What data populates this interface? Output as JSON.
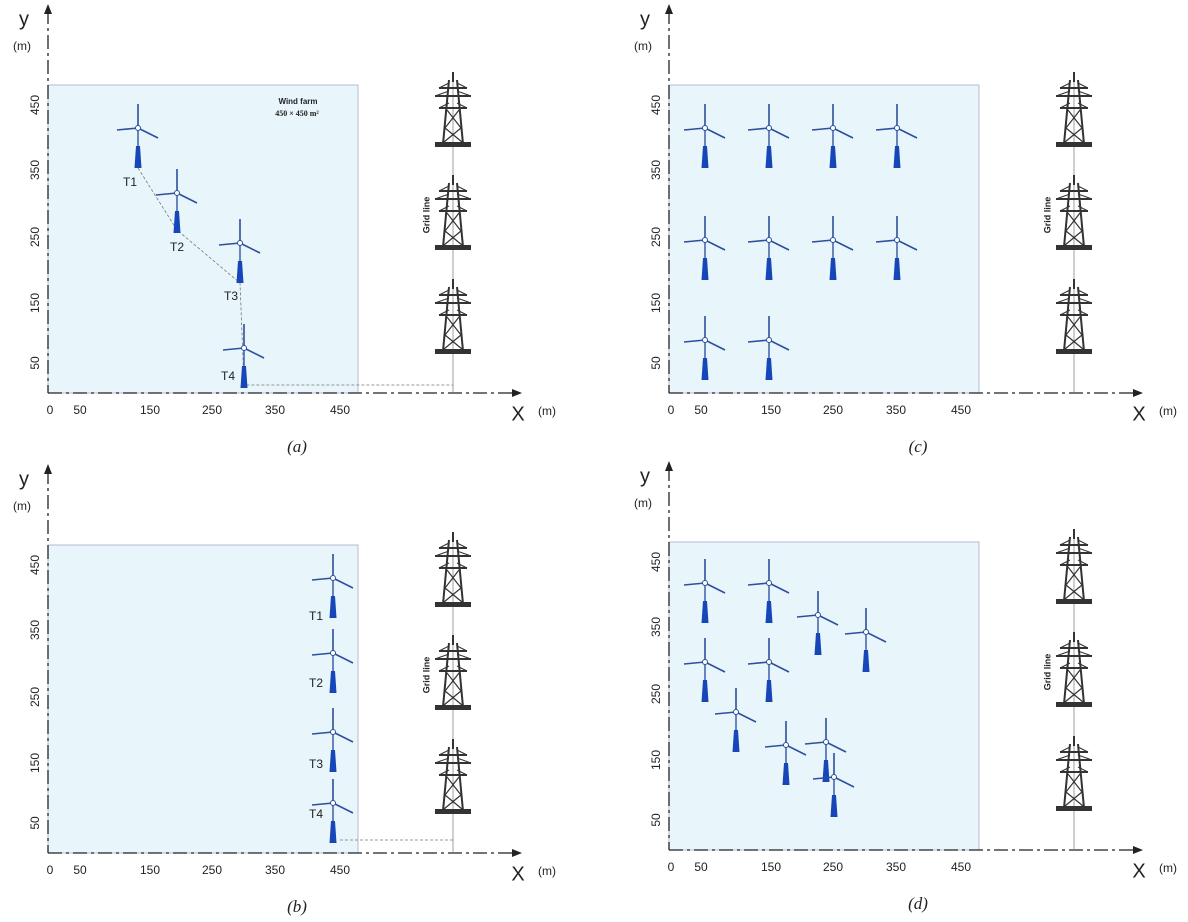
{
  "panels": [
    {
      "caption": "(a)",
      "y_label": "y",
      "y_unit": "(m)",
      "x_label": "X",
      "x_unit": "(m)",
      "yticks": [
        "450",
        "350",
        "250",
        "150",
        "50"
      ],
      "xticks": [
        "0",
        "50",
        "150",
        "250",
        "350",
        "450"
      ],
      "grid_label": "Grid line",
      "farm_label": "Wind farm",
      "farm_size": "450 × 450 m²",
      "turbine_labels": [
        "T1",
        "T2",
        "T3",
        "T4"
      ]
    },
    {
      "caption": "(c)",
      "y_label": "y",
      "y_unit": "(m)",
      "x_label": "X",
      "x_unit": "(m)",
      "yticks": [
        "450",
        "350",
        "250",
        "150",
        "50"
      ],
      "xticks": [
        "0",
        "50",
        "150",
        "250",
        "350",
        "450"
      ],
      "grid_label": "Grid line"
    },
    {
      "caption": "(b)",
      "y_label": "y",
      "y_unit": "(m)",
      "x_label": "X",
      "x_unit": "(m)",
      "yticks": [
        "450",
        "350",
        "250",
        "150",
        "50"
      ],
      "xticks": [
        "0",
        "50",
        "150",
        "250",
        "350",
        "450"
      ],
      "grid_label": "Grid line",
      "turbine_labels": [
        "T1",
        "T2",
        "T3",
        "T4"
      ]
    },
    {
      "caption": "(d)",
      "y_label": "y",
      "y_unit": "(m)",
      "x_label": "X",
      "x_unit": "(m)",
      "yticks": [
        "450",
        "350",
        "250",
        "150",
        "50"
      ],
      "xticks": [
        "0",
        "50",
        "150",
        "250",
        "350",
        "450"
      ],
      "grid_label": "Grid line"
    }
  ]
}
